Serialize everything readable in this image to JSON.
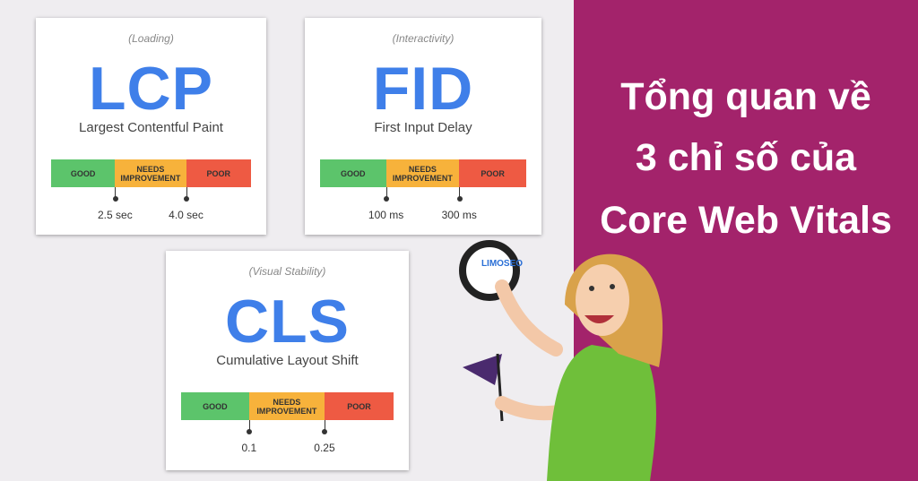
{
  "title_lines": [
    "Tổng quan về",
    "3 chỉ số của",
    "Core Web Vitals"
  ],
  "logo": "LIMOSEO",
  "cards": [
    {
      "category": "(Loading)",
      "acronym": "LCP",
      "name": "Largest Contentful Paint",
      "segments": [
        "GOOD",
        "NEEDS IMPROVEMENT",
        "POOR"
      ],
      "thresholds": [
        "2.5 sec",
        "4.0 sec"
      ]
    },
    {
      "category": "(Interactivity)",
      "acronym": "FID",
      "name": "First Input Delay",
      "segments": [
        "GOOD",
        "NEEDS IMPROVEMENT",
        "POOR"
      ],
      "thresholds": [
        "100 ms",
        "300 ms"
      ]
    },
    {
      "category": "(Visual Stability)",
      "acronym": "CLS",
      "name": "Cumulative Layout Shift",
      "segments": [
        "GOOD",
        "NEEDS IMPROVEMENT",
        "POOR"
      ],
      "thresholds": [
        "0.1",
        "0.25"
      ]
    }
  ]
}
